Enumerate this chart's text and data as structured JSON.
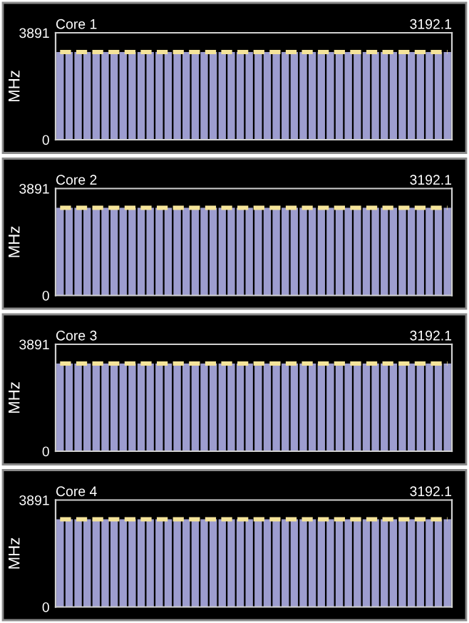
{
  "chart_data": [
    {
      "type": "bar",
      "title": "Core 1",
      "subtitle": "3192.1",
      "ylabel": "MHz",
      "ylim": [
        0,
        3891
      ],
      "yticks": [
        0,
        3891
      ],
      "grid": false,
      "legend": false,
      "tick_labels": "y",
      "categories": [
        null,
        null,
        null,
        null,
        null,
        null,
        null,
        null,
        null,
        null,
        null,
        null,
        null,
        null,
        null,
        null,
        null,
        null,
        null,
        null,
        null,
        null,
        null,
        null,
        null,
        null,
        null,
        null,
        null,
        null,
        null,
        null,
        null,
        null,
        null,
        null,
        null,
        null,
        null,
        null,
        null,
        null,
        null,
        null
      ],
      "series": [
        {
          "color": "#9d9dcf",
          "values": [
            3192.1,
            3192.1,
            3192.1,
            3192.1,
            3192.1,
            3192.1,
            3192.1,
            3192.1,
            3192.1,
            3192.1,
            3192.1,
            3192.1,
            3192.1,
            3192.1,
            3192.1,
            3192.1,
            3192.1,
            3192.1,
            3192.1,
            3192.1,
            3192.1,
            3192.1,
            3192.1,
            3192.1,
            3192.1,
            3192.1,
            3192.1,
            3192.1,
            3192.1,
            3192.1,
            3192.1,
            3192.1,
            3192.1,
            3192.1,
            3192.1,
            3192.1,
            3192.1,
            3192.1,
            3192.1,
            3192.1,
            3192.1,
            3192.1,
            3192.1,
            3192.1
          ]
        },
        {
          "type": "line",
          "color": "#f5e49a",
          "line_style": "dashed",
          "values": [
            3192.1,
            3192.1,
            3192.1,
            3192.1,
            3192.1,
            3192.1,
            3192.1,
            3192.1,
            3192.1,
            3192.1,
            3192.1,
            3192.1,
            3192.1,
            3192.1,
            3192.1,
            3192.1,
            3192.1,
            3192.1,
            3192.1,
            3192.1,
            3192.1,
            3192.1,
            3192.1,
            3192.1,
            3192.1,
            3192.1,
            3192.1,
            3192.1,
            3192.1,
            3192.1,
            3192.1,
            3192.1,
            3192.1,
            3192.1,
            3192.1,
            3192.1,
            3192.1,
            3192.1,
            3192.1,
            3192.1,
            3192.1,
            3192.1,
            3192.1,
            3192.1
          ]
        }
      ]
    },
    {
      "type": "bar",
      "title": "Core 2",
      "subtitle": "3192.1",
      "ylabel": "MHz",
      "ylim": [
        0,
        3891
      ],
      "yticks": [
        0,
        3891
      ],
      "grid": false,
      "legend": false,
      "tick_labels": "y",
      "categories": [
        null,
        null,
        null,
        null,
        null,
        null,
        null,
        null,
        null,
        null,
        null,
        null,
        null,
        null,
        null,
        null,
        null,
        null,
        null,
        null,
        null,
        null,
        null,
        null,
        null,
        null,
        null,
        null,
        null,
        null,
        null,
        null,
        null,
        null,
        null,
        null,
        null,
        null,
        null,
        null,
        null,
        null,
        null,
        null
      ],
      "series": [
        {
          "color": "#9d9dcf",
          "values": [
            3192.1,
            3192.1,
            3192.1,
            3192.1,
            3192.1,
            3192.1,
            3192.1,
            3192.1,
            3192.1,
            3192.1,
            3192.1,
            3192.1,
            3192.1,
            3192.1,
            3192.1,
            3192.1,
            3192.1,
            3192.1,
            3192.1,
            3192.1,
            3192.1,
            3192.1,
            3192.1,
            3192.1,
            3192.1,
            3192.1,
            3192.1,
            3192.1,
            3192.1,
            3192.1,
            3192.1,
            3192.1,
            3192.1,
            3192.1,
            3192.1,
            3192.1,
            3192.1,
            3192.1,
            3192.1,
            3192.1,
            3192.1,
            3192.1,
            3192.1,
            3192.1
          ]
        },
        {
          "type": "line",
          "color": "#f5e49a",
          "line_style": "dashed",
          "values": [
            3192.1,
            3192.1,
            3192.1,
            3192.1,
            3192.1,
            3192.1,
            3192.1,
            3192.1,
            3192.1,
            3192.1,
            3192.1,
            3192.1,
            3192.1,
            3192.1,
            3192.1,
            3192.1,
            3192.1,
            3192.1,
            3192.1,
            3192.1,
            3192.1,
            3192.1,
            3192.1,
            3192.1,
            3192.1,
            3192.1,
            3192.1,
            3192.1,
            3192.1,
            3192.1,
            3192.1,
            3192.1,
            3192.1,
            3192.1,
            3192.1,
            3192.1,
            3192.1,
            3192.1,
            3192.1,
            3192.1,
            3192.1,
            3192.1,
            3192.1,
            3192.1
          ]
        }
      ]
    },
    {
      "type": "bar",
      "title": "Core 3",
      "subtitle": "3192.1",
      "ylabel": "MHz",
      "ylim": [
        0,
        3891
      ],
      "yticks": [
        0,
        3891
      ],
      "grid": false,
      "legend": false,
      "tick_labels": "y",
      "categories": [
        null,
        null,
        null,
        null,
        null,
        null,
        null,
        null,
        null,
        null,
        null,
        null,
        null,
        null,
        null,
        null,
        null,
        null,
        null,
        null,
        null,
        null,
        null,
        null,
        null,
        null,
        null,
        null,
        null,
        null,
        null,
        null,
        null,
        null,
        null,
        null,
        null,
        null,
        null,
        null,
        null,
        null,
        null,
        null
      ],
      "series": [
        {
          "color": "#9d9dcf",
          "values": [
            3192.1,
            3192.1,
            3192.1,
            3192.1,
            3192.1,
            3192.1,
            3192.1,
            3192.1,
            3192.1,
            3192.1,
            3192.1,
            3192.1,
            3192.1,
            3192.1,
            3192.1,
            3192.1,
            3192.1,
            3192.1,
            3192.1,
            3192.1,
            3192.1,
            3192.1,
            3192.1,
            3192.1,
            3192.1,
            3192.1,
            3192.1,
            3192.1,
            3192.1,
            3192.1,
            3192.1,
            3192.1,
            3192.1,
            3192.1,
            3192.1,
            3192.1,
            3192.1,
            3192.1,
            3192.1,
            3192.1,
            3192.1,
            3192.1,
            3192.1,
            3192.1
          ]
        },
        {
          "type": "line",
          "color": "#f5e49a",
          "line_style": "dashed",
          "values": [
            3192.1,
            3192.1,
            3192.1,
            3192.1,
            3192.1,
            3192.1,
            3192.1,
            3192.1,
            3192.1,
            3192.1,
            3192.1,
            3192.1,
            3192.1,
            3192.1,
            3192.1,
            3192.1,
            3192.1,
            3192.1,
            3192.1,
            3192.1,
            3192.1,
            3192.1,
            3192.1,
            3192.1,
            3192.1,
            3192.1,
            3192.1,
            3192.1,
            3192.1,
            3192.1,
            3192.1,
            3192.1,
            3192.1,
            3192.1,
            3192.1,
            3192.1,
            3192.1,
            3192.1,
            3192.1,
            3192.1,
            3192.1,
            3192.1,
            3192.1,
            3192.1
          ]
        }
      ]
    },
    {
      "type": "bar",
      "title": "Core 4",
      "subtitle": "3192.1",
      "ylabel": "MHz",
      "ylim": [
        0,
        3891
      ],
      "yticks": [
        0,
        3891
      ],
      "grid": false,
      "legend": false,
      "tick_labels": "y",
      "categories": [
        null,
        null,
        null,
        null,
        null,
        null,
        null,
        null,
        null,
        null,
        null,
        null,
        null,
        null,
        null,
        null,
        null,
        null,
        null,
        null,
        null,
        null,
        null,
        null,
        null,
        null,
        null,
        null,
        null,
        null,
        null,
        null,
        null,
        null,
        null,
        null,
        null,
        null,
        null,
        null,
        null,
        null,
        null,
        null
      ],
      "series": [
        {
          "color": "#9d9dcf",
          "values": [
            3192.1,
            3192.1,
            3192.1,
            3192.1,
            3192.1,
            3192.1,
            3192.1,
            3192.1,
            3192.1,
            3192.1,
            3192.1,
            3192.1,
            3192.1,
            3192.1,
            3192.1,
            3192.1,
            3192.1,
            3192.1,
            3192.1,
            3192.1,
            3192.1,
            3192.1,
            3192.1,
            3192.1,
            3192.1,
            3192.1,
            3192.1,
            3192.1,
            3192.1,
            3192.1,
            3192.1,
            3192.1,
            3192.1,
            3192.1,
            3192.1,
            3192.1,
            3192.1,
            3192.1,
            3192.1,
            3192.1,
            3192.1,
            3192.1,
            3192.1,
            3192.1
          ]
        },
        {
          "type": "line",
          "color": "#f5e49a",
          "line_style": "dashed",
          "values": [
            3192.1,
            3192.1,
            3192.1,
            3192.1,
            3192.1,
            3192.1,
            3192.1,
            3192.1,
            3192.1,
            3192.1,
            3192.1,
            3192.1,
            3192.1,
            3192.1,
            3192.1,
            3192.1,
            3192.1,
            3192.1,
            3192.1,
            3192.1,
            3192.1,
            3192.1,
            3192.1,
            3192.1,
            3192.1,
            3192.1,
            3192.1,
            3192.1,
            3192.1,
            3192.1,
            3192.1,
            3192.1,
            3192.1,
            3192.1,
            3192.1,
            3192.1,
            3192.1,
            3192.1,
            3192.1,
            3192.1,
            3192.1,
            3192.1,
            3192.1,
            3192.1
          ]
        }
      ]
    }
  ]
}
